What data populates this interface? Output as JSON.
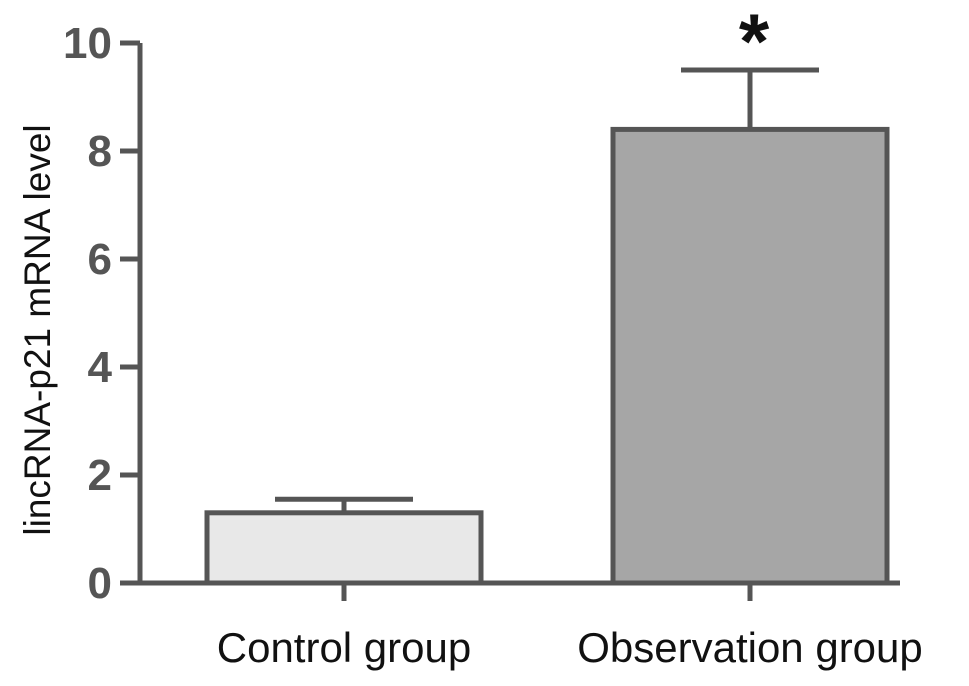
{
  "chart_data": {
    "type": "bar",
    "title": "",
    "xlabel": "",
    "ylabel": "lincRNA-p21 mRNA level",
    "categories": [
      "Control group",
      "Observation group"
    ],
    "values": [
      1.3,
      8.4
    ],
    "error_upper": [
      1.55,
      9.5
    ],
    "significance": [
      "",
      "*"
    ],
    "ylim": [
      0,
      10
    ],
    "yticks": [
      0,
      2,
      4,
      6,
      8,
      10
    ],
    "grid": false,
    "legend": "none",
    "colors": {
      "bar_fills": [
        "#e8e8e8",
        "#a6a6a6"
      ],
      "bar_stroke": "#555555",
      "axis": "#555555",
      "tick_label": "#555555",
      "category_label": "#111111"
    }
  }
}
